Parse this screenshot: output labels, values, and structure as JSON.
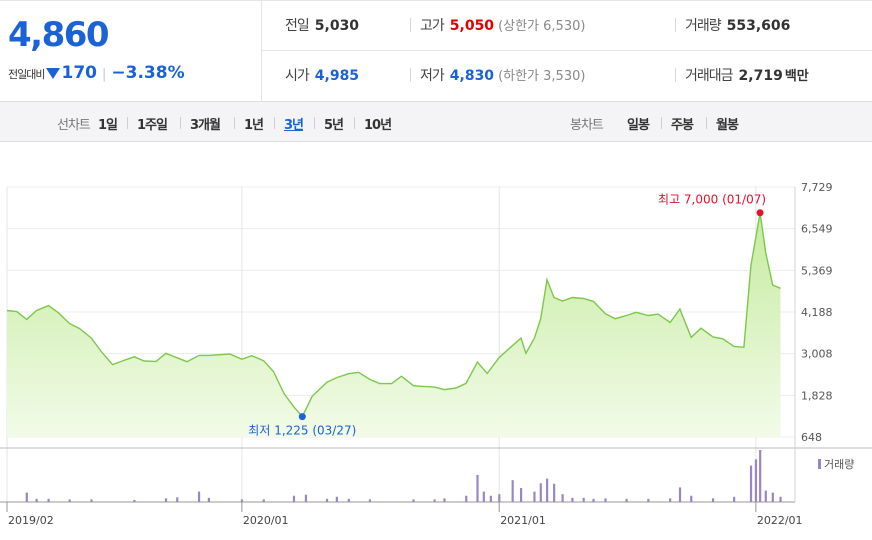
{
  "quote": {
    "price": "4,860",
    "change_label": "전일대비",
    "change": "170",
    "change_pct": "−3.38%",
    "rows": [
      [
        {
          "key": "전일",
          "value": "5,030",
          "tone": "plain",
          "sub": ""
        },
        {
          "key": "고가",
          "value": "5,050",
          "tone": "red",
          "sub": "(상한가 6,530)"
        },
        {
          "key": "거래량",
          "value": "553,606",
          "tone": "plain",
          "sub": ""
        }
      ],
      [
        {
          "key": "시가",
          "value": "4,985",
          "tone": "blue",
          "sub": ""
        },
        {
          "key": "저가",
          "value": "4,830",
          "tone": "blue",
          "sub": "(하한가 3,530)"
        },
        {
          "key": "거래대금",
          "value": "2,719",
          "tone": "plain",
          "sub": "백만"
        }
      ]
    ]
  },
  "period_bar": {
    "line_label": "선차트",
    "line_periods": [
      "1일",
      "1주일",
      "3개월",
      "1년",
      "3년",
      "5년",
      "10년"
    ],
    "selected": "3년",
    "candle_label": "봉차트",
    "candle_periods": [
      "일봉",
      "주봉",
      "월봉"
    ]
  },
  "colors": {
    "price_up": "#e00000",
    "price_down": "#1b62d6",
    "line": "#7cc84a",
    "area_top": "#c5eb9f",
    "area_bottom": "#f2fbe8",
    "volume": "#9b86c4",
    "high_marker": "#e8112d",
    "low_marker": "#1b62d6"
  },
  "chart_data": {
    "type": "area",
    "y_ticks": [
      "7,729",
      "6,549",
      "5,369",
      "4,188",
      "3,008",
      "1,828",
      "648"
    ],
    "ylim": [
      648,
      7729
    ],
    "x_ticks": [
      "2019/02",
      "2020/01",
      "2021/01",
      "2022/01"
    ],
    "x_tick_dates": [
      "2019-02-01",
      "2020-01-01",
      "2021-01-01",
      "2022-01-01"
    ],
    "xlim": [
      "2019-02-01",
      "2022-02-20"
    ],
    "grid": true,
    "high": {
      "label": "최고 7,000 (01/07)",
      "date": "2022-01-07",
      "value": 7000
    },
    "low": {
      "label": "최저 1,225 (03/27)",
      "date": "2020-03-27",
      "value": 1225
    },
    "volume_legend": "거래량",
    "price": [
      [
        "2019-02-01",
        4230
      ],
      [
        "2019-02-15",
        4200
      ],
      [
        "2019-03-01",
        3980
      ],
      [
        "2019-03-15",
        4230
      ],
      [
        "2019-04-01",
        4370
      ],
      [
        "2019-04-15",
        4170
      ],
      [
        "2019-05-01",
        3860
      ],
      [
        "2019-05-15",
        3720
      ],
      [
        "2019-06-01",
        3450
      ],
      [
        "2019-06-15",
        3070
      ],
      [
        "2019-07-01",
        2700
      ],
      [
        "2019-07-15",
        2800
      ],
      [
        "2019-08-01",
        2920
      ],
      [
        "2019-08-15",
        2800
      ],
      [
        "2019-09-01",
        2790
      ],
      [
        "2019-09-15",
        3020
      ],
      [
        "2019-10-01",
        2890
      ],
      [
        "2019-10-15",
        2780
      ],
      [
        "2019-11-01",
        2960
      ],
      [
        "2019-11-15",
        2960
      ],
      [
        "2019-12-01",
        2980
      ],
      [
        "2019-12-15",
        3000
      ],
      [
        "2020-01-01",
        2850
      ],
      [
        "2020-01-15",
        2950
      ],
      [
        "2020-02-01",
        2810
      ],
      [
        "2020-02-15",
        2500
      ],
      [
        "2020-03-01",
        1880
      ],
      [
        "2020-03-15",
        1500
      ],
      [
        "2020-03-27",
        1225
      ],
      [
        "2020-04-10",
        1800
      ],
      [
        "2020-05-01",
        2200
      ],
      [
        "2020-05-15",
        2330
      ],
      [
        "2020-06-01",
        2440
      ],
      [
        "2020-06-15",
        2480
      ],
      [
        "2020-07-01",
        2280
      ],
      [
        "2020-07-15",
        2160
      ],
      [
        "2020-08-01",
        2160
      ],
      [
        "2020-08-15",
        2370
      ],
      [
        "2020-09-01",
        2100
      ],
      [
        "2020-09-15",
        2080
      ],
      [
        "2020-10-01",
        2060
      ],
      [
        "2020-10-15",
        1990
      ],
      [
        "2020-11-01",
        2040
      ],
      [
        "2020-11-15",
        2170
      ],
      [
        "2020-12-01",
        2770
      ],
      [
        "2020-12-15",
        2450
      ],
      [
        "2021-01-01",
        2900
      ],
      [
        "2021-01-15",
        3150
      ],
      [
        "2021-02-01",
        3450
      ],
      [
        "2021-02-08",
        3020
      ],
      [
        "2021-02-20",
        3450
      ],
      [
        "2021-03-01",
        4000
      ],
      [
        "2021-03-10",
        5100
      ],
      [
        "2021-03-20",
        4600
      ],
      [
        "2021-04-01",
        4500
      ],
      [
        "2021-04-15",
        4600
      ],
      [
        "2021-05-01",
        4570
      ],
      [
        "2021-05-15",
        4490
      ],
      [
        "2021-06-01",
        4140
      ],
      [
        "2021-06-15",
        4000
      ],
      [
        "2021-07-01",
        4090
      ],
      [
        "2021-07-15",
        4180
      ],
      [
        "2021-08-01",
        4090
      ],
      [
        "2021-08-15",
        4130
      ],
      [
        "2021-09-01",
        3890
      ],
      [
        "2021-09-15",
        4270
      ],
      [
        "2021-10-01",
        3470
      ],
      [
        "2021-10-15",
        3730
      ],
      [
        "2021-11-01",
        3480
      ],
      [
        "2021-11-15",
        3430
      ],
      [
        "2021-12-01",
        3210
      ],
      [
        "2021-12-15",
        3190
      ],
      [
        "2021-12-25",
        5500
      ],
      [
        "2022-01-07",
        7000
      ],
      [
        "2022-01-15",
        5870
      ],
      [
        "2022-01-25",
        4950
      ],
      [
        "2022-02-05",
        4860
      ]
    ],
    "volume": [
      [
        "2019-03-01",
        0.18
      ],
      [
        "2019-03-15",
        0.06
      ],
      [
        "2019-04-01",
        0.06
      ],
      [
        "2019-05-01",
        0.05
      ],
      [
        "2019-06-01",
        0.05
      ],
      [
        "2019-08-01",
        0.04
      ],
      [
        "2019-09-15",
        0.07
      ],
      [
        "2019-10-01",
        0.09
      ],
      [
        "2019-11-01",
        0.2
      ],
      [
        "2019-11-15",
        0.08
      ],
      [
        "2020-01-01",
        0.05
      ],
      [
        "2020-02-01",
        0.05
      ],
      [
        "2020-03-15",
        0.12
      ],
      [
        "2020-04-01",
        0.14
      ],
      [
        "2020-05-01",
        0.06
      ],
      [
        "2020-05-15",
        0.1
      ],
      [
        "2020-06-01",
        0.06
      ],
      [
        "2020-07-01",
        0.05
      ],
      [
        "2020-09-01",
        0.05
      ],
      [
        "2020-10-01",
        0.05
      ],
      [
        "2020-10-15",
        0.07
      ],
      [
        "2020-11-15",
        0.12
      ],
      [
        "2020-12-01",
        0.52
      ],
      [
        "2020-12-10",
        0.2
      ],
      [
        "2020-12-20",
        0.12
      ],
      [
        "2021-01-01",
        0.15
      ],
      [
        "2021-01-20",
        0.42
      ],
      [
        "2021-02-01",
        0.27
      ],
      [
        "2021-02-20",
        0.2
      ],
      [
        "2021-03-01",
        0.36
      ],
      [
        "2021-03-10",
        0.45
      ],
      [
        "2021-03-20",
        0.35
      ],
      [
        "2021-04-01",
        0.15
      ],
      [
        "2021-04-15",
        0.08
      ],
      [
        "2021-05-01",
        0.08
      ],
      [
        "2021-05-15",
        0.06
      ],
      [
        "2021-06-01",
        0.07
      ],
      [
        "2021-07-01",
        0.06
      ],
      [
        "2021-08-01",
        0.06
      ],
      [
        "2021-09-01",
        0.07
      ],
      [
        "2021-09-15",
        0.28
      ],
      [
        "2021-10-01",
        0.12
      ],
      [
        "2021-11-01",
        0.07
      ],
      [
        "2021-12-01",
        0.1
      ],
      [
        "2021-12-25",
        0.7
      ],
      [
        "2022-01-01",
        0.82
      ],
      [
        "2022-01-07",
        1.0
      ],
      [
        "2022-01-15",
        0.22
      ],
      [
        "2022-01-25",
        0.18
      ],
      [
        "2022-02-05",
        0.1
      ]
    ]
  }
}
